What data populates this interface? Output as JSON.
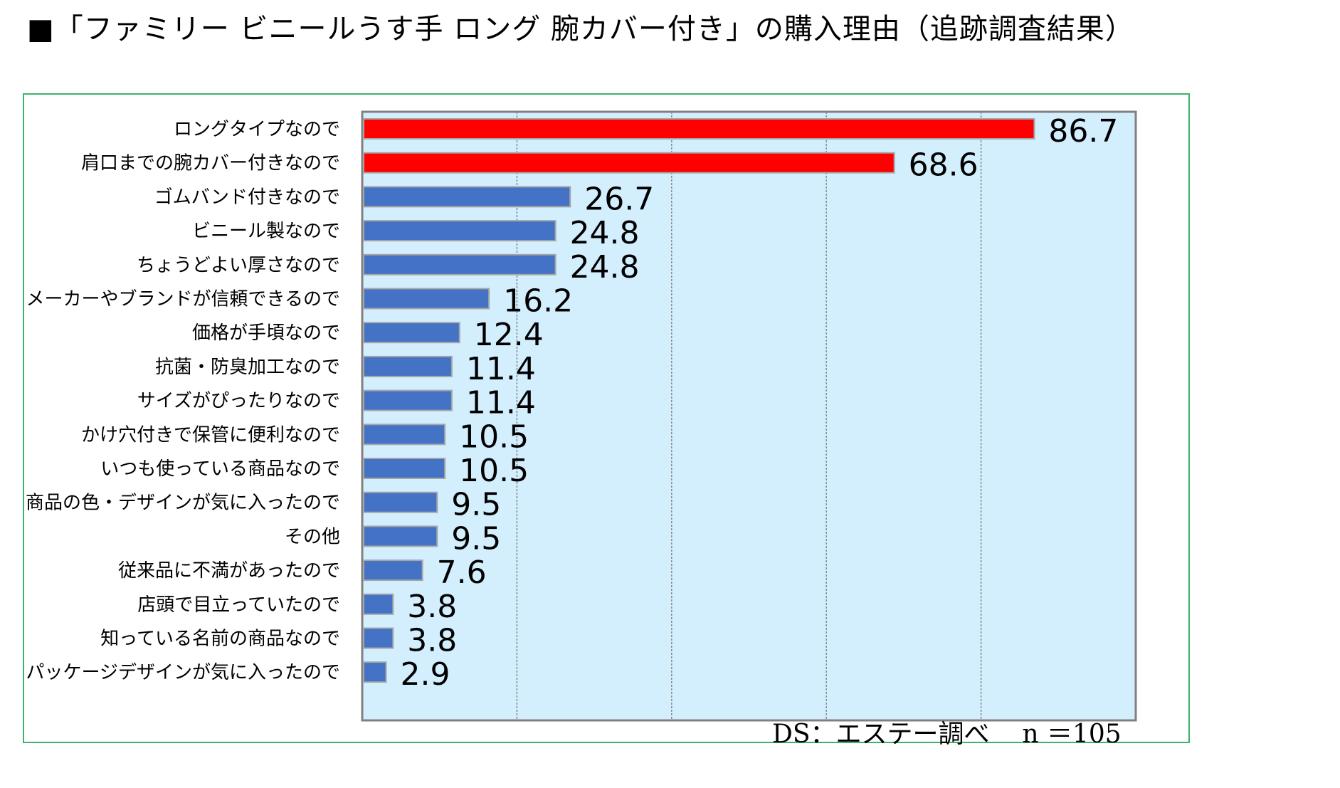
{
  "title": "■「ファミリー ビニールうす手 ロング 腕カバー付き」の購入理由（追跡調査結果）",
  "source_note": "DS：エステー調べ",
  "sample_note": "n ＝105",
  "colors": {
    "highlight": "#ff0000",
    "bar": "#4472c4",
    "plot_bg": "#d3eefd",
    "frame": "#3cb46e"
  },
  "chart_data": {
    "type": "bar",
    "orientation": "horizontal",
    "categories": [
      "ロングタイプなので",
      "肩口までの腕カバー付きなので",
      "ゴムバンド付きなので",
      "ビニール製なので",
      "ちょうどよい厚さなので",
      "メーカーやブランドが信頼できるので",
      "価格が手頃なので",
      "抗菌・防臭加工なので",
      "サイズがぴったりなので",
      "かけ穴付きで保管に便利なので",
      "いつも使っている商品なので",
      "商品の色・デザインが気に入ったので",
      "その他",
      "従来品に不満があったので",
      "店頭で目立っていたので",
      "知っている名前の商品なので",
      "パッケージデザインが気に入ったので"
    ],
    "values": [
      86.7,
      68.6,
      26.7,
      24.8,
      24.8,
      16.2,
      12.4,
      11.4,
      11.4,
      10.5,
      10.5,
      9.5,
      9.5,
      7.6,
      3.8,
      3.8,
      2.9
    ],
    "value_labels": [
      "86.7",
      "68.6",
      "26.7",
      "24.8",
      "24.8",
      "16.2",
      "12.4",
      "11.4",
      "11.4",
      "10.5",
      "10.5",
      "9.5",
      "9.5",
      "7.6",
      "3.8",
      "3.8",
      "2.9"
    ],
    "highlighted": [
      0,
      1
    ],
    "xlim": [
      0,
      100
    ],
    "gridlines": [
      20,
      40,
      60,
      80
    ],
    "grid": true,
    "title": "",
    "xlabel": "",
    "ylabel": ""
  }
}
